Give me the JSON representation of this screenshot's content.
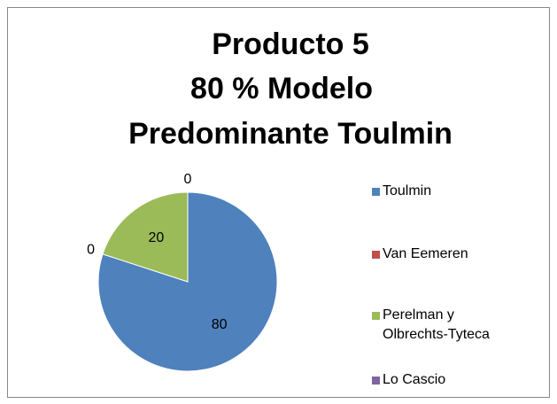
{
  "chart_data": {
    "type": "pie",
    "title": [
      "Producto  5",
      "80  %  Modelo",
      "Predominante Toulmin"
    ],
    "categories": [
      "Toulmin",
      "Van Eemeren",
      "Perelman y Olbrechts-Tyteca",
      "Lo Cascio"
    ],
    "values": [
      80,
      0,
      20,
      0
    ],
    "colors": [
      "#4f81bd",
      "#c0504d",
      "#9bbb59",
      "#8064a2"
    ],
    "legend": "right"
  }
}
